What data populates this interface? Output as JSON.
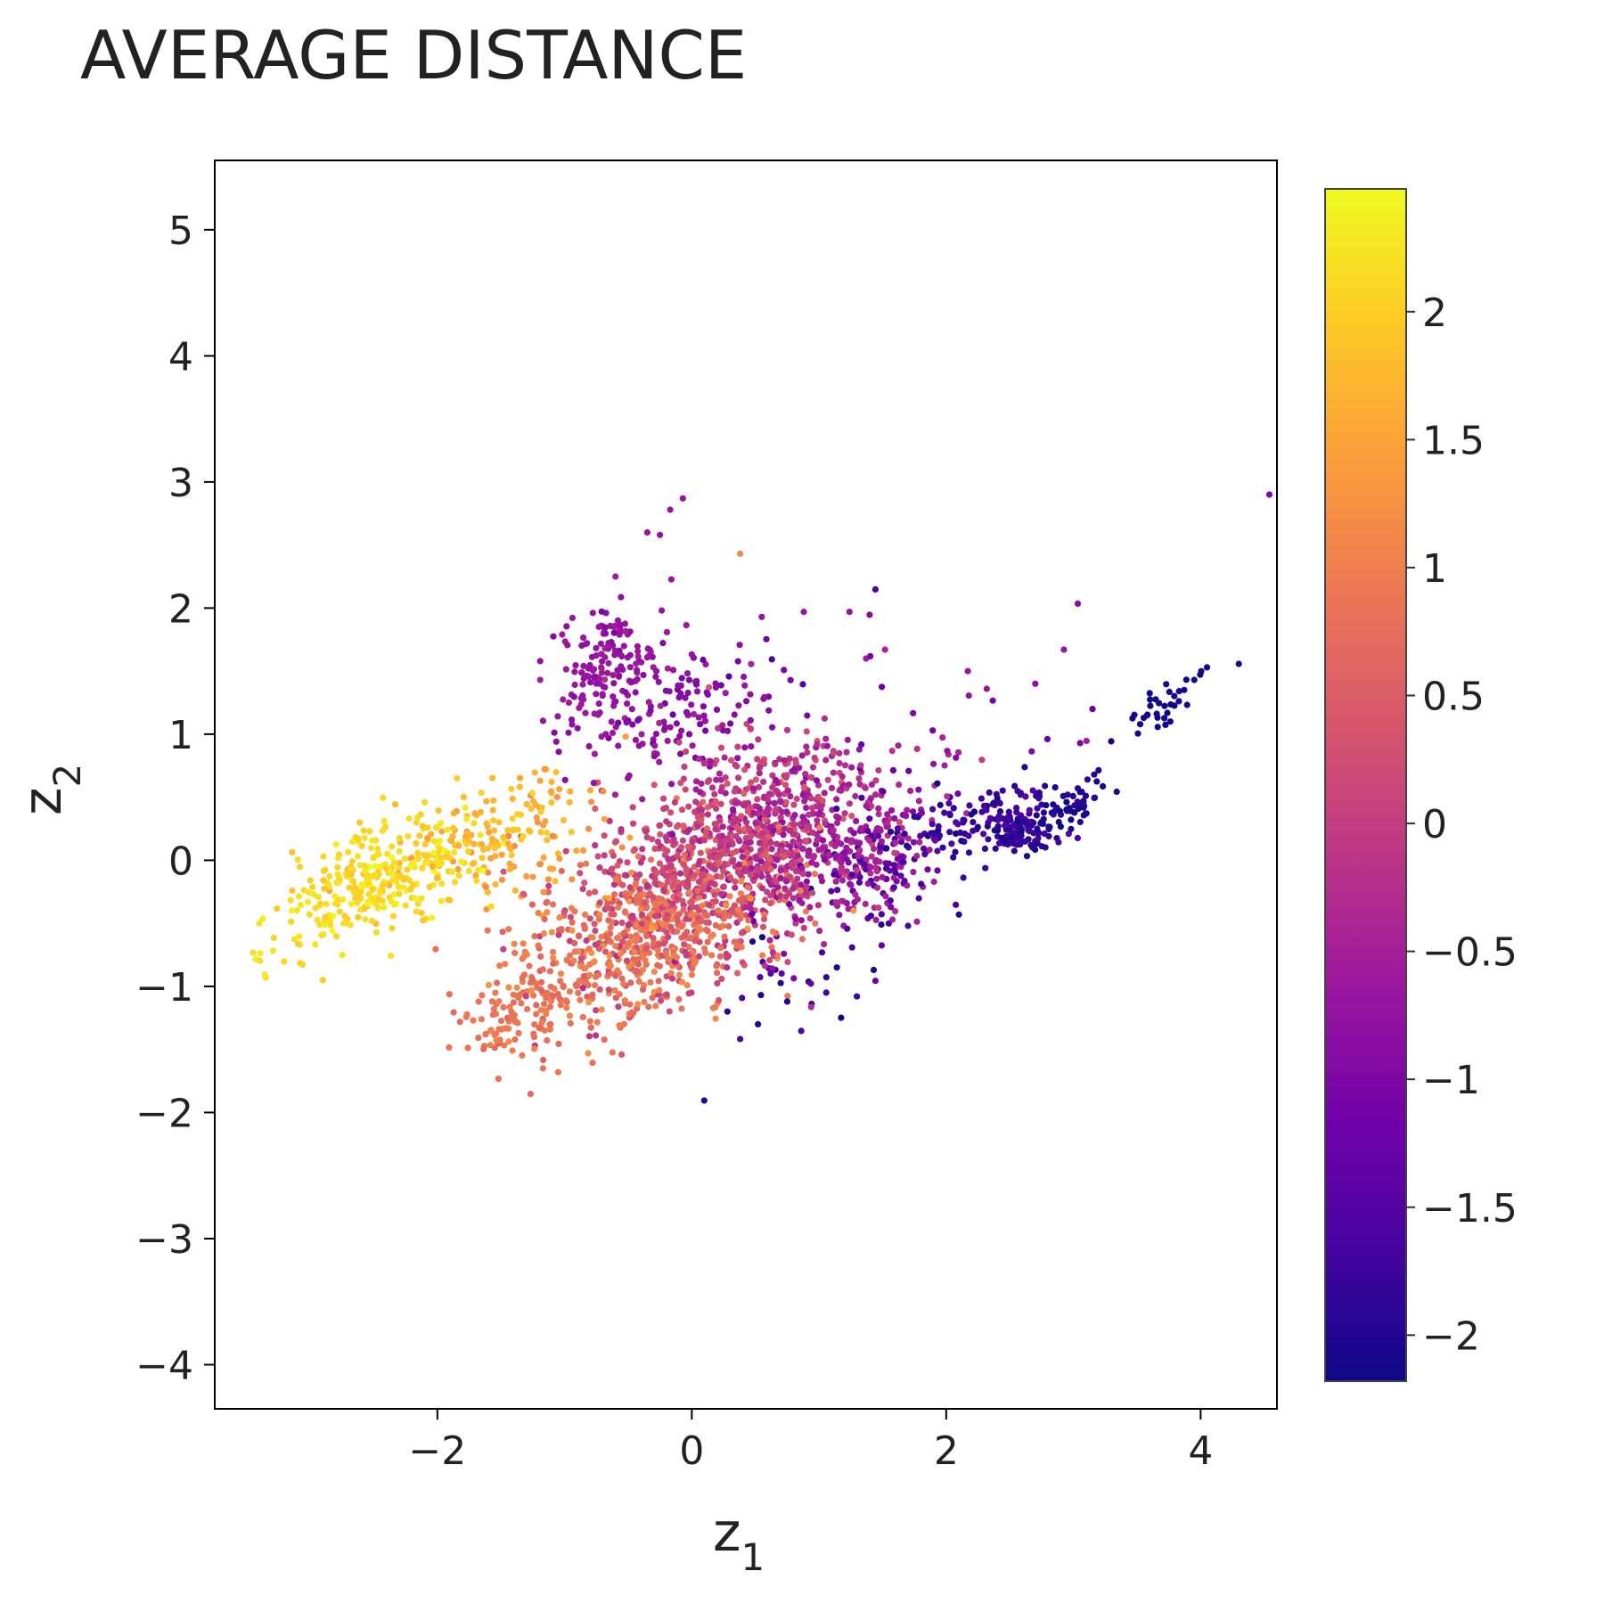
{
  "chart_data": {
    "type": "scatter",
    "title": "AVERAGE DISTANCE",
    "xlabel": {
      "main": "z",
      "sub": "1"
    },
    "ylabel": {
      "main": "z",
      "sub": "2"
    },
    "xlim": [
      -3.75,
      4.6
    ],
    "ylim": [
      -4.35,
      5.55
    ],
    "xticks": [
      {
        "value": -2,
        "label": "−2"
      },
      {
        "value": 0,
        "label": "0"
      },
      {
        "value": 2,
        "label": "2"
      },
      {
        "value": 4,
        "label": "4"
      }
    ],
    "yticks": [
      {
        "value": 5,
        "label": "5"
      },
      {
        "value": 4,
        "label": "4"
      },
      {
        "value": 3,
        "label": "3"
      },
      {
        "value": 2,
        "label": "2"
      },
      {
        "value": 1,
        "label": "1"
      },
      {
        "value": 0,
        "label": "0"
      },
      {
        "value": -1,
        "label": "−1"
      },
      {
        "value": -2,
        "label": "−2"
      },
      {
        "value": -3,
        "label": "−3"
      },
      {
        "value": -4,
        "label": "−4"
      }
    ],
    "grid": false,
    "colormap": "plasma",
    "colorbar": {
      "range": [
        -2.18,
        2.48
      ],
      "ticks": [
        {
          "value": 2,
          "label": "2"
        },
        {
          "value": 1.5,
          "label": "1.5"
        },
        {
          "value": 1,
          "label": "1"
        },
        {
          "value": 0.5,
          "label": "0.5"
        },
        {
          "value": 0,
          "label": "0"
        },
        {
          "value": -0.5,
          "label": "−0.5"
        },
        {
          "value": -1,
          "label": "−1"
        },
        {
          "value": -1.5,
          "label": "−1.5"
        },
        {
          "value": -2,
          "label": "−2"
        }
      ],
      "colors": [
        "#0d0887",
        "#46039f",
        "#7201a8",
        "#9c179e",
        "#bd3786",
        "#d8576b",
        "#ed7953",
        "#fb9f3a",
        "#fdca26",
        "#f0f921"
      ]
    },
    "clusters": [
      {
        "cx": -2.4,
        "cy": -0.1,
        "sx": 0.35,
        "sy": 0.22,
        "rho": 0.4,
        "n": 280,
        "c": 2.15,
        "cs": 0.15
      },
      {
        "cx": -3.0,
        "cy": -0.5,
        "sx": 0.2,
        "sy": 0.2,
        "rho": 0.3,
        "n": 40,
        "c": 2.2,
        "cs": 0.1
      },
      {
        "cx": -1.6,
        "cy": 0.25,
        "sx": 0.3,
        "sy": 0.22,
        "rho": 0.4,
        "n": 110,
        "c": 1.75,
        "cs": 0.2
      },
      {
        "cx": -1.1,
        "cy": 0.1,
        "sx": 0.35,
        "sy": 0.3,
        "rho": 0.3,
        "n": 50,
        "c": 1.4,
        "cs": 0.2
      },
      {
        "cx": -0.35,
        "cy": -0.6,
        "sx": 0.55,
        "sy": 0.35,
        "rho": 0.5,
        "n": 500,
        "c": 0.9,
        "cs": 0.2
      },
      {
        "cx": -1.2,
        "cy": -1.15,
        "sx": 0.25,
        "sy": 0.2,
        "rho": 0.3,
        "n": 90,
        "c": 0.85,
        "cs": 0.1
      },
      {
        "cx": -1.6,
        "cy": -1.35,
        "sx": 0.1,
        "sy": 0.12,
        "rho": 0.0,
        "n": 25,
        "c": 0.9,
        "cs": 0.1
      },
      {
        "cx": 0.0,
        "cy": -0.15,
        "sx": 0.5,
        "sy": 0.42,
        "rho": 0.4,
        "n": 650,
        "c": 0.2,
        "cs": 0.25
      },
      {
        "cx": 0.6,
        "cy": 0.3,
        "sx": 0.45,
        "sy": 0.35,
        "rho": 0.2,
        "n": 350,
        "c": -0.25,
        "cs": 0.25
      },
      {
        "cx": 1.15,
        "cy": 0.1,
        "sx": 0.4,
        "sy": 0.3,
        "rho": 0.2,
        "n": 300,
        "c": -0.55,
        "cs": 0.25
      },
      {
        "cx": -0.65,
        "cy": 1.6,
        "sx": 0.2,
        "sy": 0.2,
        "rho": 0.2,
        "n": 120,
        "c": -0.7,
        "cs": 0.1
      },
      {
        "cx": -0.55,
        "cy": 1.1,
        "sx": 0.35,
        "sy": 0.35,
        "rho": 0.0,
        "n": 90,
        "c": -0.7,
        "cs": 0.15
      },
      {
        "cx": 0.1,
        "cy": 1.2,
        "sx": 0.3,
        "sy": 0.2,
        "rho": 0.0,
        "n": 80,
        "c": -0.85,
        "cs": 0.15
      },
      {
        "cx": 1.5,
        "cy": 0.0,
        "sx": 0.3,
        "sy": 0.25,
        "rho": 0.2,
        "n": 80,
        "c": -1.45,
        "cs": 0.25
      },
      {
        "cx": 2.3,
        "cy": 0.3,
        "sx": 0.3,
        "sy": 0.15,
        "rho": 0.3,
        "n": 130,
        "c": -1.75,
        "cs": 0.2
      },
      {
        "cx": 2.6,
        "cy": 0.2,
        "sx": 0.12,
        "sy": 0.08,
        "rho": 0.0,
        "n": 70,
        "c": -1.9,
        "cs": 0.15
      },
      {
        "cx": 3.0,
        "cy": 0.45,
        "sx": 0.15,
        "sy": 0.08,
        "rho": 0.3,
        "n": 50,
        "c": -2.05,
        "cs": 0.08
      },
      {
        "cx": 3.7,
        "cy": 1.2,
        "sx": 0.2,
        "sy": 0.18,
        "rho": 0.85,
        "n": 35,
        "c": -2.1,
        "cs": 0.05
      },
      {
        "cx": 0.8,
        "cy": -0.8,
        "sx": 0.35,
        "sy": 0.3,
        "rho": 0.2,
        "n": 35,
        "c": -1.5,
        "cs": 0.5
      },
      {
        "cx": 1.6,
        "cy": 1.2,
        "sx": 0.9,
        "sy": 0.5,
        "rho": 0.1,
        "n": 35,
        "c": -0.9,
        "cs": 0.3
      }
    ],
    "outliers": [
      {
        "x": -0.07,
        "y": 2.87,
        "c": -0.7
      },
      {
        "x": -0.17,
        "y": 2.78,
        "c": -0.7
      },
      {
        "x": 0.38,
        "y": 2.43,
        "c": 1.1
      },
      {
        "x": -0.35,
        "y": 2.6,
        "c": -0.7
      },
      {
        "x": -0.25,
        "y": 2.58,
        "c": -0.7
      },
      {
        "x": -0.6,
        "y": 2.25,
        "c": -0.6
      },
      {
        "x": 0.55,
        "y": 1.93,
        "c": -0.7
      },
      {
        "x": 0.88,
        "y": 1.97,
        "c": -0.7
      },
      {
        "x": 1.24,
        "y": 1.97,
        "c": -0.7
      },
      {
        "x": 1.37,
        "y": 1.6,
        "c": -0.6
      },
      {
        "x": 2.17,
        "y": 1.5,
        "c": -0.7
      },
      {
        "x": 2.7,
        "y": 1.4,
        "c": -0.8
      },
      {
        "x": 3.15,
        "y": 1.2,
        "c": -1.3
      },
      {
        "x": 4.05,
        "y": 1.53,
        "c": -2.1
      },
      {
        "x": 3.95,
        "y": 1.43,
        "c": -2.1
      },
      {
        "x": 0.52,
        "y": -1.3,
        "c": -2.0
      },
      {
        "x": 0.28,
        "y": -1.2,
        "c": -2.0
      },
      {
        "x": 0.75,
        "y": -1.12,
        "c": -2.0
      },
      {
        "x": -1.05,
        "y": -1.68,
        "c": 0.9
      },
      {
        "x": -1.17,
        "y": -1.65,
        "c": 0.9
      },
      {
        "x": -3.35,
        "y": -0.93,
        "c": 2.1
      },
      {
        "x": -2.9,
        "y": -0.95,
        "c": 2.0
      },
      {
        "x": -3.4,
        "y": -0.5,
        "c": 2.2
      },
      {
        "x": 2.1,
        "y": -0.43,
        "c": -1.9
      },
      {
        "x": 1.43,
        "y": -0.87,
        "c": -2.0
      },
      {
        "x": 1.14,
        "y": -0.85,
        "c": -2.0
      },
      {
        "x": 1.7,
        "y": -0.52,
        "c": -1.6
      },
      {
        "x": -0.52,
        "y": 0.98,
        "c": 1.4
      }
    ]
  }
}
